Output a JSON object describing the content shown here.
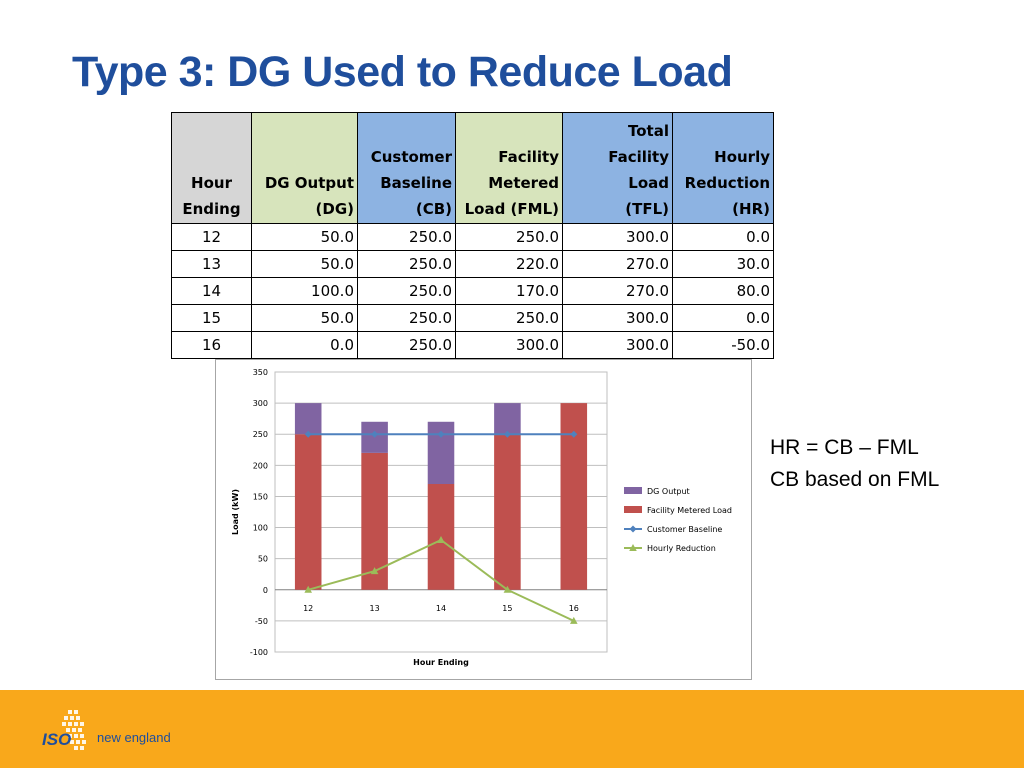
{
  "slide": {
    "title": "Type 3: DG Used to Reduce Load",
    "notes": [
      "HR = CB – FML",
      "CB based on FML"
    ],
    "footer": {
      "logo_iso": "ISO",
      "logo_name": "new england"
    }
  },
  "table": {
    "headers": [
      [
        "Hour",
        "Ending"
      ],
      [
        "DG Output",
        "(DG)"
      ],
      [
        "Customer",
        "Baseline",
        "(CB)"
      ],
      [
        "Facility",
        "Metered",
        "Load (FML)"
      ],
      [
        "Total",
        "Facility Load",
        "(TFL)"
      ],
      [
        "Hourly",
        "Reduction",
        "(HR)"
      ]
    ],
    "rows": [
      [
        "12",
        "50.0",
        "250.0",
        "250.0",
        "300.0",
        "0.0"
      ],
      [
        "13",
        "50.0",
        "250.0",
        "220.0",
        "270.0",
        "30.0"
      ],
      [
        "14",
        "100.0",
        "250.0",
        "170.0",
        "270.0",
        "80.0"
      ],
      [
        "15",
        "50.0",
        "250.0",
        "250.0",
        "300.0",
        "0.0"
      ],
      [
        "16",
        "0.0",
        "250.0",
        "300.0",
        "300.0",
        "-50.0"
      ]
    ]
  },
  "chart_data": {
    "type": "bar",
    "stacked": true,
    "categories": [
      "12",
      "13",
      "14",
      "15",
      "16"
    ],
    "series": [
      {
        "name": "DG Output",
        "kind": "bar",
        "color": "#8064a2",
        "values": [
          50,
          50,
          100,
          50,
          0
        ]
      },
      {
        "name": "Facility Metered Load",
        "kind": "bar",
        "color": "#c0504d",
        "values": [
          250,
          220,
          170,
          250,
          300
        ]
      },
      {
        "name": "Customer Baseline",
        "kind": "line",
        "marker": "diamond",
        "color": "#4f81bd",
        "values": [
          250,
          250,
          250,
          250,
          250
        ]
      },
      {
        "name": "Hourly Reduction",
        "kind": "line",
        "marker": "triangle",
        "color": "#9bbb59",
        "values": [
          0,
          30,
          80,
          0,
          -50
        ]
      }
    ],
    "xlabel": "Hour Ending",
    "ylabel": "Load (kW)",
    "ylim": [
      -100,
      350
    ],
    "yticks": [
      350,
      300,
      250,
      200,
      150,
      100,
      50,
      0,
      -50,
      -100
    ],
    "grid": true,
    "legend": "right"
  }
}
